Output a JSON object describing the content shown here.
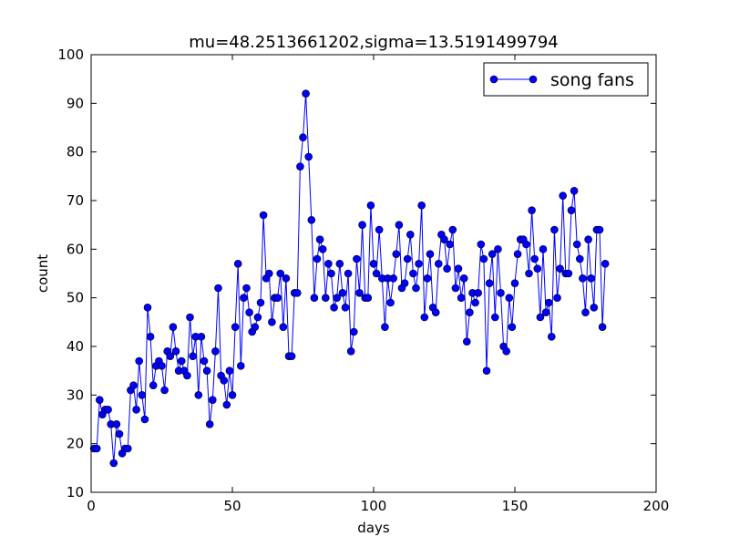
{
  "chart_data": {
    "type": "line",
    "title": "mu=48.2513661202,sigma=13.5191499794",
    "xlabel": "days",
    "ylabel": "count",
    "xlim": [
      0,
      200
    ],
    "ylim": [
      10,
      100
    ],
    "xticks": [
      0,
      50,
      100,
      150,
      200
    ],
    "yticks": [
      10,
      20,
      30,
      40,
      50,
      60,
      70,
      80,
      90,
      100
    ],
    "grid": false,
    "legend_position": "top-right",
    "series": [
      {
        "name": "song fans",
        "color": "#0000ff",
        "marker": "circle",
        "x": [
          1,
          2,
          3,
          4,
          5,
          6,
          7,
          8,
          9,
          10,
          11,
          12,
          13,
          14,
          15,
          16,
          17,
          18,
          19,
          20,
          21,
          22,
          23,
          24,
          25,
          26,
          27,
          28,
          29,
          30,
          31,
          32,
          33,
          34,
          35,
          36,
          37,
          38,
          39,
          40,
          41,
          42,
          43,
          44,
          45,
          46,
          47,
          48,
          49,
          50,
          51,
          52,
          53,
          54,
          55,
          56,
          57,
          58,
          59,
          60,
          61,
          62,
          63,
          64,
          65,
          66,
          67,
          68,
          69,
          70,
          71,
          72,
          73,
          74,
          75,
          76,
          77,
          78,
          79,
          80,
          81,
          82,
          83,
          84,
          85,
          86,
          87,
          88,
          89,
          90,
          91,
          92,
          93,
          94,
          95,
          96,
          97,
          98,
          99,
          100,
          101,
          102,
          103,
          104,
          105,
          106,
          107,
          108,
          109,
          110,
          111,
          112,
          113,
          114,
          115,
          116,
          117,
          118,
          119,
          120,
          121,
          122,
          123,
          124,
          125,
          126,
          127,
          128,
          129,
          130,
          131,
          132,
          133,
          134,
          135,
          136,
          137,
          138,
          139,
          140,
          141,
          142,
          143,
          144,
          145,
          146,
          147,
          148,
          149,
          150,
          151,
          152,
          153,
          154,
          155,
          156,
          157,
          158,
          159,
          160,
          161,
          162,
          163,
          164,
          165,
          166,
          167,
          168,
          169,
          170,
          171,
          172,
          173,
          174,
          175,
          176,
          177,
          178,
          179,
          180,
          181,
          182
        ],
        "y": [
          19,
          19,
          29,
          26,
          27,
          27,
          24,
          16,
          24,
          22,
          18,
          19,
          19,
          31,
          32,
          27,
          37,
          30,
          25,
          48,
          42,
          32,
          36,
          37,
          36,
          31,
          39,
          38,
          44,
          39,
          35,
          37,
          35,
          34,
          46,
          38,
          42,
          30,
          42,
          37,
          35,
          24,
          29,
          39,
          52,
          34,
          33,
          28,
          35,
          30,
          44,
          57,
          36,
          50,
          52,
          47,
          43,
          44,
          46,
          49,
          67,
          54,
          55,
          45,
          50,
          50,
          55,
          44,
          54,
          38,
          38,
          51,
          51,
          77,
          83,
          92,
          79,
          66,
          50,
          58,
          62,
          60,
          50,
          57,
          55,
          48,
          50,
          57,
          51,
          48,
          55,
          39,
          43,
          58,
          51,
          65,
          50,
          50,
          69,
          57,
          55,
          64,
          54,
          44,
          54,
          49,
          54,
          59,
          65,
          52,
          53,
          58,
          63,
          55,
          52,
          57,
          69,
          46,
          54,
          59,
          48,
          47,
          57,
          63,
          62,
          56,
          61,
          64,
          52,
          56,
          50,
          54,
          41,
          47,
          51,
          49,
          51,
          61,
          58,
          35,
          53,
          59,
          46,
          60,
          51,
          40,
          39,
          50,
          44,
          53,
          59,
          62,
          62,
          61,
          55,
          68,
          58,
          56,
          46,
          60,
          47,
          49,
          42,
          64,
          50,
          56,
          71,
          55,
          55,
          68,
          72,
          61,
          58,
          54,
          47,
          62,
          54,
          48,
          64,
          64,
          44,
          57
        ]
      }
    ]
  }
}
